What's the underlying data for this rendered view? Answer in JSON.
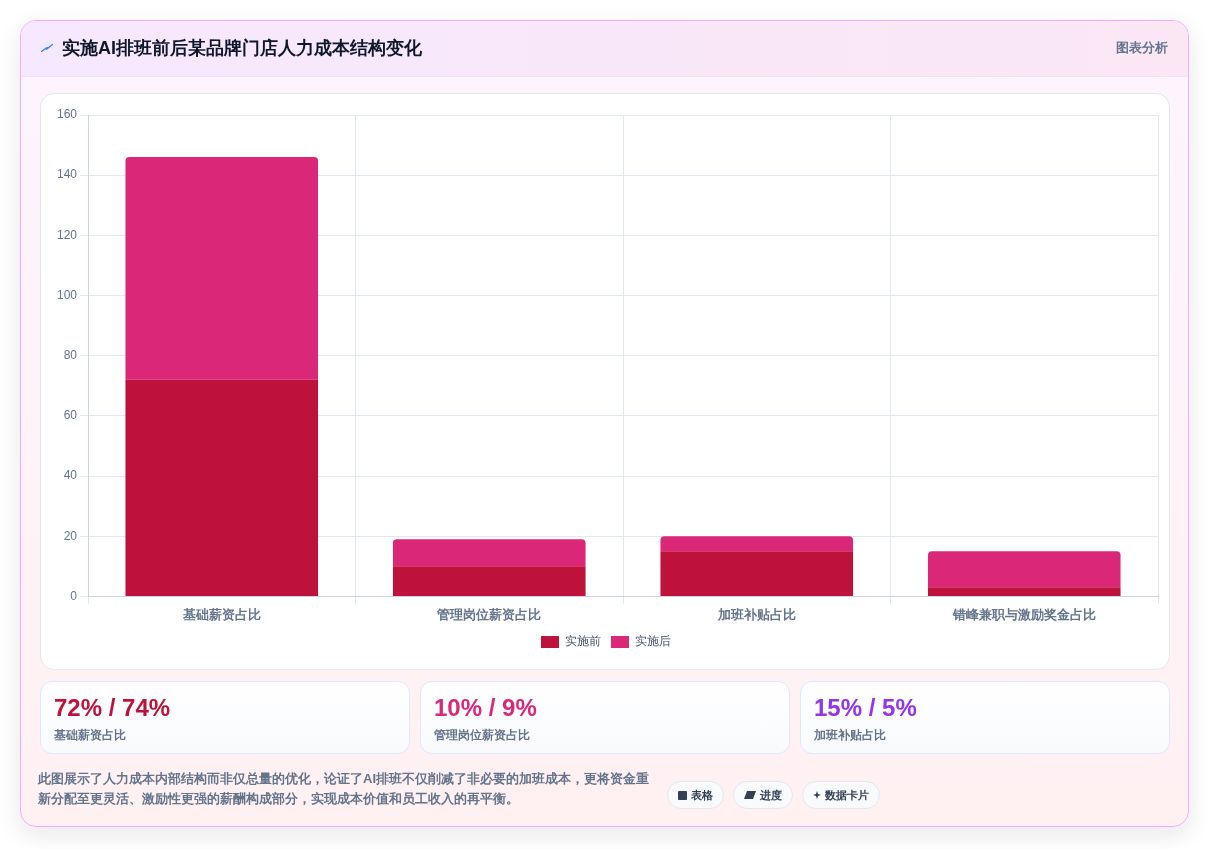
{
  "chart_data": [
    {
      "type": "bar",
      "title": "实施AI排班前后某品牌门店人力成本结构变化",
      "categories": [
        "基础薪资占比",
        "管理岗位薪资占比",
        "加班补贴占比",
        "错峰兼职与激励奖金占比"
      ],
      "series": [
        {
          "name": "实施前",
          "color": "#be123c",
          "values": [
            72,
            10,
            15,
            3
          ]
        },
        {
          "name": "实施后",
          "color": "#db2777",
          "values": [
            74,
            9,
            5,
            12
          ]
        }
      ],
      "stacked": true,
      "ylim": [
        0,
        160
      ],
      "yticks": [
        0,
        20,
        40,
        60,
        80,
        100,
        120,
        140,
        160
      ],
      "grid": true,
      "legend": "bottom",
      "annotations": [
        "图表分析",
        "此图展示了人力成本内部结构而非仅总量的优化，论证了AI排班不仅削减了非必要的加班成本，更将资金重新分配至更灵活、激励性更强的薪酬构成部分，实现成本价值和员工收入的再平衡。",
        "表格",
        "进度",
        "数据卡片"
      ]
    },
    {
      "type": "other",
      "title": "72% / 74%",
      "subtitle": "基础薪资占比"
    },
    {
      "type": "other",
      "title": "10% / 9%",
      "subtitle": "管理岗位薪资占比"
    },
    {
      "type": "other",
      "title": "15% / 5%",
      "subtitle": "加班补贴占比"
    }
  ]
}
